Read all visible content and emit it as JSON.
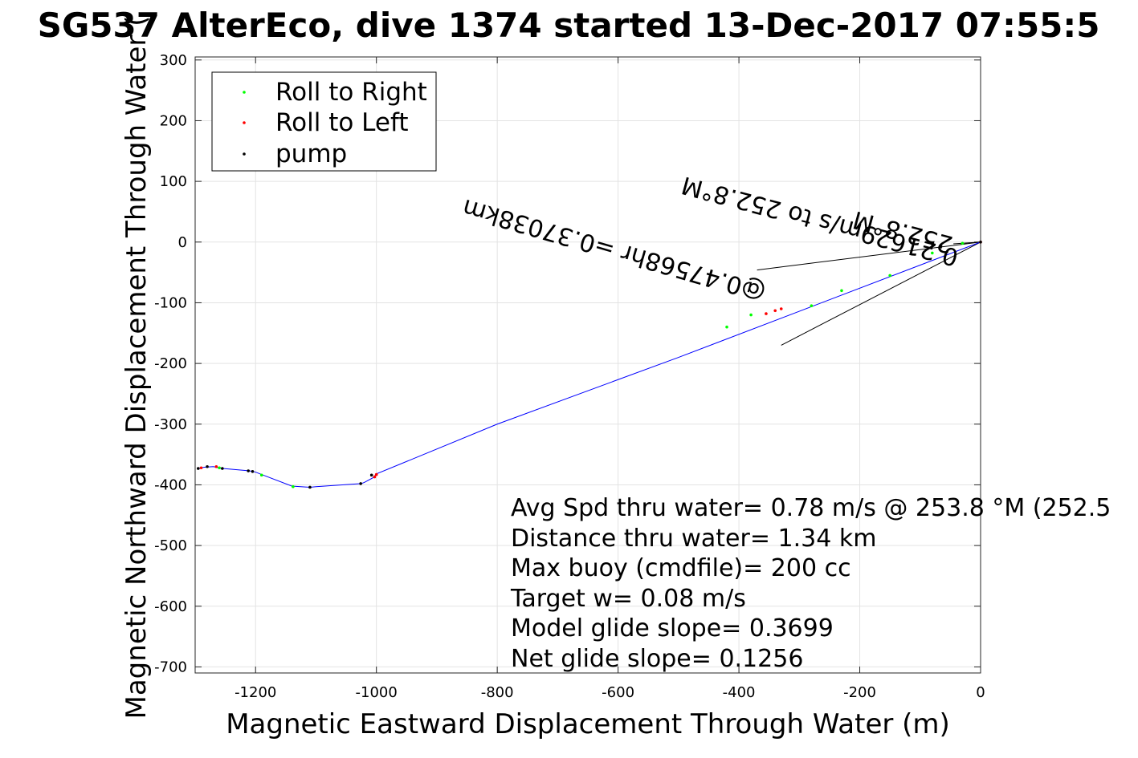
{
  "chart_data": {
    "type": "line",
    "title": "SG537 AlterEco, dive 1374 started 13-Dec-2017 07:55:5",
    "xlabel": "Magnetic Eastward Displacement Through Water (m)",
    "ylabel": "Magnetic Northward Displacement Through Water (",
    "xlim": [
      -1300,
      0
    ],
    "ylim": [
      -710,
      305
    ],
    "x_ticks": [
      -1200,
      -1000,
      -800,
      -600,
      -400,
      -200,
      0
    ],
    "y_ticks": [
      300,
      200,
      100,
      0,
      -100,
      -200,
      -300,
      -400,
      -500,
      -600,
      -700
    ],
    "grid": true,
    "legend_position": "top-left",
    "legend": [
      {
        "label": "Roll to Right",
        "color": "#00ff00"
      },
      {
        "label": "Roll to Left",
        "color": "#ff0000"
      },
      {
        "label": "pump",
        "color": "#000000"
      }
    ],
    "track": {
      "name": "track",
      "color": "#0000ff",
      "x": [
        0,
        -300,
        -500,
        -800,
        -1000,
        -1005,
        -1020,
        -1025,
        -1100,
        -1110,
        -1140,
        -1190,
        -1200,
        -1210,
        -1255,
        -1270,
        -1285,
        -1295
      ],
      "y": [
        0,
        -114,
        -190,
        -300,
        -382,
        -388,
        -396,
        -398,
        -403,
        -404,
        -402,
        -383,
        -379,
        -377,
        -373,
        -370,
        -371,
        -373
      ]
    },
    "roll_right_points": {
      "x": [
        -30,
        -80,
        -150,
        -230,
        -280,
        -380,
        -420,
        -1138,
        -1190,
        -1260
      ],
      "y": [
        -2,
        -18,
        -55,
        -80,
        -105,
        -120,
        -140,
        -403,
        -384,
        -372
      ]
    },
    "roll_left_points": {
      "x": [
        0,
        -330,
        -340,
        -355,
        -1000,
        -1003,
        -1265,
        -1290
      ],
      "y": [
        0,
        -110,
        -113,
        -118,
        -383,
        -387,
        -370,
        -372
      ]
    },
    "pump_points": {
      "x": [
        0,
        -1008,
        -1026,
        -1110,
        -1205,
        -1212,
        -1255,
        -1280,
        -1295
      ],
      "y": [
        0,
        -384,
        -398,
        -404,
        -378,
        -377,
        -373,
        -370,
        -373
      ]
    },
    "current_vector_lines": [
      {
        "x": [
          0,
          -370
        ],
        "y": [
          0,
          -46
        ]
      },
      {
        "x": [
          0,
          -330
        ],
        "y": [
          0,
          -170
        ]
      },
      {
        "x": [
          0,
          -45
        ],
        "y": [
          0,
          -3
        ]
      }
    ],
    "vector_labels": [
      {
        "text": "0.21629m/s to 252.8°M",
        "x": -40,
        "y": 0
      },
      {
        "text": "252.8°M",
        "x": -40,
        "y": 0
      },
      {
        "text": "@0.47568hr =0.37038km",
        "x": -350,
        "y": -100
      }
    ],
    "annotations": [
      "Avg Spd thru water=  0.78 m/s @ 253.8 °M (252.5",
      "Distance thru water=  1.34 km",
      "Max buoy (cmdfile)= 200 cc",
      "Target w= 0.08 m/s",
      "Model glide slope= 0.3699",
      "Net glide slope= 0.1256"
    ]
  }
}
